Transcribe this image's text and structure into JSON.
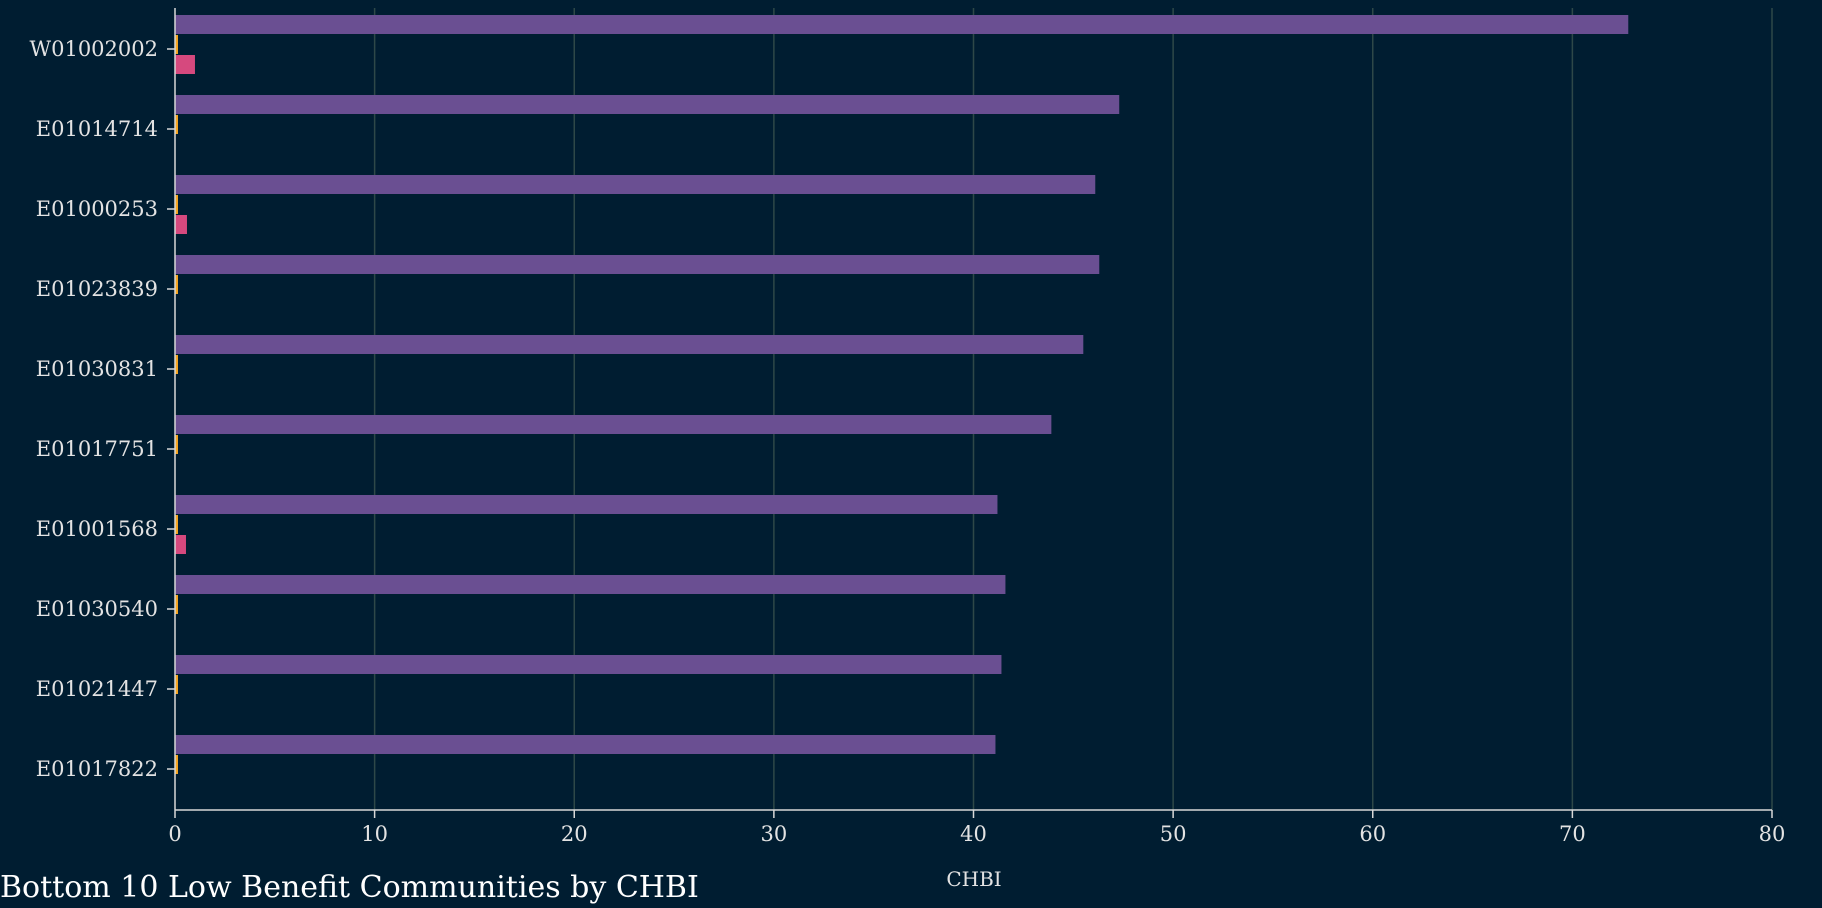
{
  "title": "Bottom 10 Low Benefit Communities by CHBI",
  "chart_data": {
    "type": "bar",
    "orientation": "horizontal",
    "title": "Bottom 10 Low Benefit Communities by CHBI",
    "xlabel": "CHBI",
    "ylabel": "",
    "xlim": [
      0,
      80
    ],
    "xticks": [
      0,
      10,
      20,
      30,
      40,
      50,
      60,
      70,
      80
    ],
    "grid": true,
    "categories": [
      "W01002002",
      "E01014714",
      "E01000253",
      "E01023839",
      "E01030831",
      "E01017751",
      "E01001568",
      "E01030540",
      "E01021447",
      "E01017822"
    ],
    "series": [
      {
        "color": "#6a4f92",
        "values": [
          72.8,
          47.3,
          46.1,
          46.3,
          45.5,
          43.9,
          41.2,
          41.6,
          41.4,
          41.1
        ]
      },
      {
        "color": "#f5a623",
        "values": [
          0.15,
          0.15,
          0.15,
          0.15,
          0.15,
          0.15,
          0.15,
          0.15,
          0.15,
          0.15
        ]
      },
      {
        "color": "#d6497e",
        "values": [
          1.0,
          0,
          0.6,
          0,
          0,
          0,
          0.55,
          0,
          0,
          0
        ]
      }
    ],
    "colors": {
      "background": "#001d31",
      "grid": "#2e4848",
      "axis": "#d8d8d8",
      "text": "#e3e3e3"
    }
  }
}
